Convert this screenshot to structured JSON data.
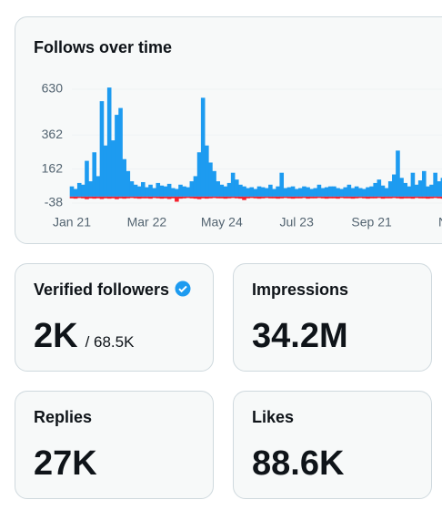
{
  "chart_data": {
    "type": "bar",
    "title": "Follows over time",
    "categories": [
      "Jan 21",
      null,
      null,
      null,
      null,
      null,
      null,
      null,
      null,
      null,
      null,
      null,
      null,
      null,
      null,
      null,
      null,
      null,
      null,
      null,
      "Mar 22",
      null,
      null,
      null,
      null,
      null,
      null,
      null,
      null,
      null,
      null,
      null,
      null,
      null,
      null,
      null,
      null,
      null,
      null,
      null,
      "May 24",
      null,
      null,
      null,
      null,
      null,
      null,
      null,
      null,
      null,
      null,
      null,
      null,
      null,
      null,
      null,
      null,
      null,
      null,
      null,
      "Jul 23",
      null,
      null,
      null,
      null,
      null,
      null,
      null,
      null,
      null,
      null,
      null,
      null,
      null,
      null,
      null,
      null,
      null,
      null,
      null,
      "Sep 21",
      null,
      null,
      null,
      null,
      null,
      null,
      null,
      null,
      null,
      null,
      null,
      null,
      null,
      null,
      null,
      null,
      null,
      null,
      null,
      "No"
    ],
    "series": [
      {
        "color": "#1d9bf0",
        "values": [
          60,
          45,
          80,
          70,
          210,
          90,
          260,
          120,
          560,
          300,
          640,
          330,
          480,
          520,
          220,
          150,
          90,
          70,
          60,
          85,
          55,
          70,
          50,
          80,
          65,
          60,
          75,
          50,
          45,
          70,
          60,
          55,
          90,
          120,
          260,
          580,
          300,
          200,
          150,
          90,
          70,
          60,
          80,
          140,
          100,
          70,
          60,
          50,
          55,
          45,
          60,
          55,
          50,
          70,
          45,
          60,
          140,
          50,
          55,
          60,
          45,
          50,
          60,
          55,
          45,
          50,
          70,
          50,
          55,
          60,
          60,
          50,
          45,
          55,
          70,
          50,
          60,
          50,
          45,
          55,
          60,
          80,
          100,
          65,
          50,
          90,
          130,
          270,
          110,
          80,
          60,
          140,
          70,
          95,
          150,
          60,
          70,
          140,
          90,
          110,
          70
        ]
      },
      {
        "color": "#f4212e",
        "values": [
          -10,
          -12,
          -8,
          -10,
          -15,
          -10,
          -12,
          -10,
          -14,
          -10,
          -12,
          -10,
          -15,
          -10,
          -12,
          -10,
          -8,
          -10,
          -12,
          -10,
          -10,
          -12,
          -8,
          -10,
          -12,
          -10,
          -14,
          -10,
          -30,
          -12,
          -10,
          -8,
          -10,
          -12,
          -15,
          -10,
          -12,
          -10,
          -8,
          -10,
          -10,
          -12,
          -10,
          -8,
          -10,
          -12,
          -20,
          -10,
          -8,
          -10,
          -12,
          -10,
          -8,
          -10,
          -10,
          -12,
          -10,
          -8,
          -10,
          -12,
          -10,
          -10,
          -8,
          -12,
          -10,
          -10,
          -8,
          -10,
          -12,
          -10,
          -10,
          -12,
          -8,
          -10,
          -10,
          -12,
          -10,
          -8,
          -10,
          -12,
          -10,
          -10,
          -8,
          -12,
          -10,
          -10,
          -8,
          -10,
          -12,
          -10,
          -10,
          -12,
          -8,
          -10,
          -10,
          -12,
          -10,
          -8,
          -10,
          -12,
          -10
        ]
      }
    ],
    "ylim": [
      -38,
      630
    ],
    "yticks": [
      630,
      362,
      162,
      -38
    ],
    "grid": true
  },
  "stats": [
    {
      "label": "Verified followers",
      "value": "2K",
      "sub": "/ 68.5K"
    },
    {
      "label": "Impressions",
      "value": "34.2M"
    },
    {
      "label": "Replies",
      "value": "27K"
    },
    {
      "label": "Likes",
      "value": "88.6K"
    }
  ]
}
